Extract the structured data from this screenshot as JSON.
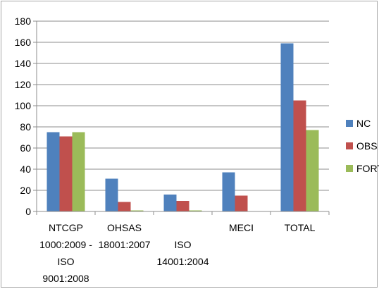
{
  "chart_data": {
    "type": "bar",
    "title": "",
    "xlabel": "",
    "ylabel": "",
    "ylim": [
      0,
      180
    ],
    "ytick_step": 20,
    "grid": true,
    "legend_position": "right",
    "categories": [
      [
        "NTCGP",
        "1000:2009 -",
        "ISO",
        "9001:2008"
      ],
      [
        "OHSAS",
        "18001:2007"
      ],
      [
        "",
        "",
        "ISO",
        "14001:2004"
      ],
      [
        "MECI"
      ],
      [
        "TOTAL"
      ]
    ],
    "series": [
      {
        "name": "NC",
        "color": "#4f81bd",
        "values": [
          75,
          31,
          16,
          37,
          159
        ]
      },
      {
        "name": "OBS",
        "color": "#c0504d",
        "values": [
          71,
          9,
          10,
          15,
          105
        ]
      },
      {
        "name": "FORT",
        "color": "#9bbb59",
        "values": [
          75,
          1,
          1,
          0,
          77
        ]
      }
    ]
  }
}
